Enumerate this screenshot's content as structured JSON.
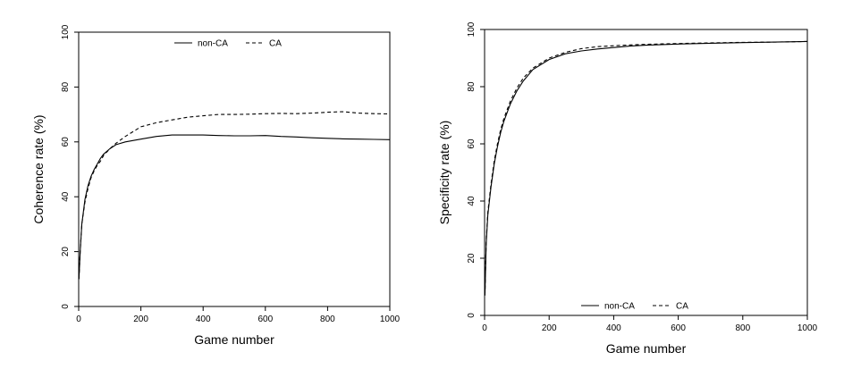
{
  "chart_data": [
    {
      "type": "line",
      "xlabel": "Game number",
      "ylabel": "Coherence rate (%)",
      "xlim": [
        0,
        1000
      ],
      "ylim": [
        0,
        100
      ],
      "xticks": [
        0,
        200,
        400,
        600,
        800,
        1000
      ],
      "yticks": [
        0,
        20,
        40,
        60,
        80,
        100
      ],
      "grid": false,
      "legend_position": "top-center",
      "series": [
        {
          "name": "non-CA",
          "line_style": "solid",
          "x": [
            1,
            5,
            10,
            20,
            30,
            40,
            50,
            60,
            70,
            80,
            100,
            120,
            150,
            200,
            250,
            300,
            350,
            400,
            450,
            500,
            550,
            600,
            650,
            700,
            750,
            800,
            850,
            900,
            950,
            1000
          ],
          "y": [
            10,
            20,
            30,
            39,
            44,
            47.5,
            50,
            52,
            54,
            55.5,
            57.5,
            59,
            60,
            61,
            62,
            62.5,
            62.5,
            62.5,
            62.3,
            62.2,
            62.2,
            62.3,
            62,
            61.8,
            61.5,
            61.3,
            61.1,
            61,
            60.9,
            60.8
          ]
        },
        {
          "name": "CA",
          "line_style": "dashed",
          "x": [
            1,
            5,
            10,
            20,
            30,
            40,
            50,
            60,
            70,
            80,
            100,
            120,
            150,
            200,
            250,
            300,
            350,
            400,
            450,
            500,
            550,
            600,
            650,
            700,
            750,
            800,
            850,
            900,
            950,
            1000
          ],
          "y": [
            10,
            20,
            30,
            38,
            43,
            47,
            49.5,
            51.5,
            53,
            55,
            57.5,
            59.5,
            62,
            65.5,
            67,
            68,
            69,
            69.5,
            70,
            70,
            70.1,
            70.3,
            70.4,
            70.3,
            70.5,
            70.8,
            71,
            70.5,
            70.3,
            70.2
          ]
        }
      ]
    },
    {
      "type": "line",
      "xlabel": "Game number",
      "ylabel": "Specificity rate (%)",
      "xlim": [
        0,
        1000
      ],
      "ylim": [
        0,
        100
      ],
      "xticks": [
        0,
        200,
        400,
        600,
        800,
        1000
      ],
      "yticks": [
        0,
        20,
        40,
        60,
        80,
        100
      ],
      "grid": false,
      "legend_position": "bottom-center",
      "series": [
        {
          "name": "non-CA",
          "line_style": "solid",
          "x": [
            1,
            5,
            10,
            20,
            30,
            40,
            50,
            60,
            80,
            100,
            120,
            150,
            200,
            250,
            300,
            350,
            400,
            450,
            500,
            600,
            700,
            800,
            900,
            1000
          ],
          "y": [
            7,
            25,
            35,
            45,
            53,
            59,
            64,
            68,
            74,
            78.5,
            82,
            86,
            89.5,
            91.5,
            92.5,
            93.2,
            93.7,
            94.2,
            94.5,
            94.9,
            95.2,
            95.4,
            95.6,
            95.8
          ]
        },
        {
          "name": "CA",
          "line_style": "dashed",
          "x": [
            1,
            5,
            10,
            20,
            30,
            40,
            50,
            60,
            80,
            100,
            120,
            150,
            200,
            250,
            300,
            350,
            400,
            450,
            500,
            600,
            700,
            800,
            900,
            1000
          ],
          "y": [
            7,
            26,
            36,
            46,
            54,
            60,
            65,
            69,
            75,
            79.5,
            83,
            86.5,
            90,
            92,
            93.3,
            94,
            94.3,
            94.6,
            94.8,
            95.1,
            95.3,
            95.5,
            95.6,
            95.8
          ]
        }
      ]
    }
  ]
}
